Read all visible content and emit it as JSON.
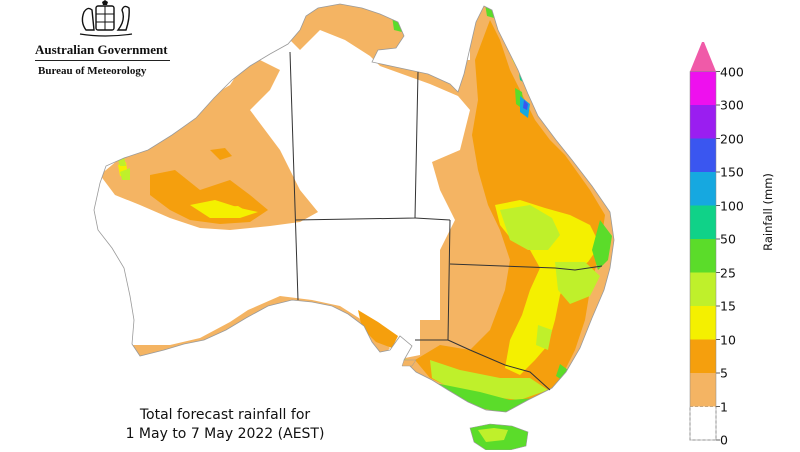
{
  "branding": {
    "government": "Australian Government",
    "bureau": "Bureau of Meteorology"
  },
  "caption": {
    "line1": "Total forecast rainfall for",
    "line2": "1 May to 7 May 2022 (AEST)"
  },
  "legend": {
    "unit_label": "Rainfall (mm)",
    "bins": [
      {
        "label": "0",
        "color": "#ffffff"
      },
      {
        "label": "1",
        "color": "#f4b463"
      },
      {
        "label": "5",
        "color": "#f59f0d"
      },
      {
        "label": "10",
        "color": "#f4f000"
      },
      {
        "label": "15",
        "color": "#bff02b"
      },
      {
        "label": "25",
        "color": "#5bdc2a"
      },
      {
        "label": "50",
        "color": "#10d288"
      },
      {
        "label": "100",
        "color": "#16a8e0"
      },
      {
        "label": "150",
        "color": "#3a56f0"
      },
      {
        "label": "200",
        "color": "#9a1ef0"
      },
      {
        "label": "300",
        "color": "#ee10ee"
      },
      {
        "label": "400",
        "color": "#f05aa8"
      }
    ]
  },
  "map_colors": {
    "land_dry": "#ffffff",
    "state_border": "#333333",
    "coast": "#888888"
  }
}
